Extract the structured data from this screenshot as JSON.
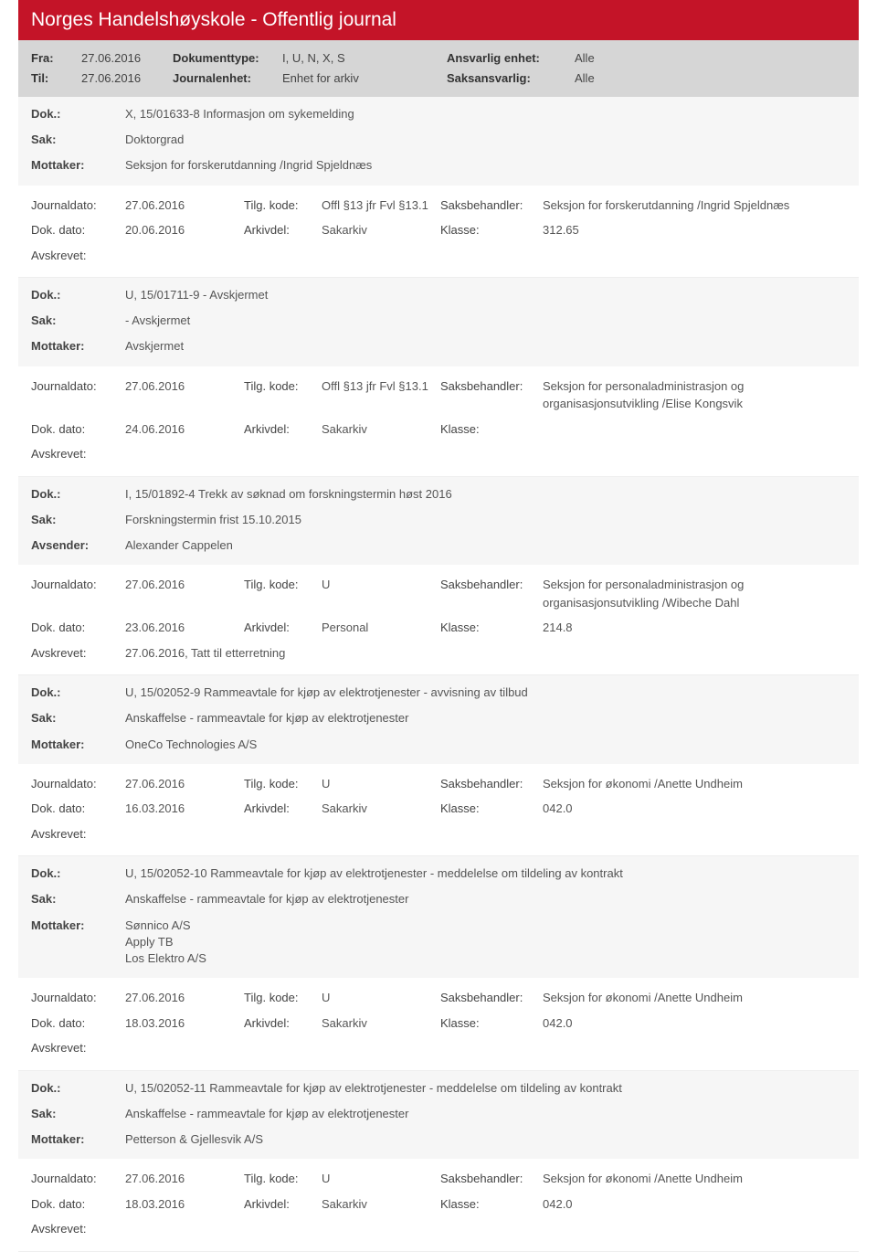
{
  "header": {
    "title": "Norges Handelshøyskole - Offentlig journal"
  },
  "filter": {
    "fra_label": "Fra:",
    "fra": "27.06.2016",
    "til_label": "Til:",
    "til": "27.06.2016",
    "doktype_label": "Dokumenttype:",
    "doktype": "I, U, N, X, S",
    "journalenhet_label": "Journalenhet:",
    "journalenhet": "Enhet for arkiv",
    "ansvenhet_label": "Ansvarlig enhet:",
    "ansvenhet": "Alle",
    "saksansv_label": "Saksansvarlig:",
    "saksansv": "Alle"
  },
  "labels": {
    "dok": "Dok.:",
    "sak": "Sak:",
    "mottaker": "Mottaker:",
    "avsender": "Avsender:",
    "journaldato": "Journaldato:",
    "tilgkode": "Tilg. kode:",
    "saksbehandler": "Saksbehandler:",
    "dokdato": "Dok. dato:",
    "arkivdel": "Arkivdel:",
    "klasse": "Klasse:",
    "avskrevet": "Avskrevet:"
  },
  "entries": [
    {
      "dok": "X, 15/01633-8 Informasjon om sykemelding",
      "sak": "Doktorgrad",
      "party_label": "Mottaker:",
      "party": "Seksjon for forskerutdanning /Ingrid Spjeldnæs",
      "journaldato": "27.06.2016",
      "tilgkode": "Offl §13 jfr Fvl §13.1",
      "saksbehandler": "Seksjon for forskerutdanning /Ingrid Spjeldnæs",
      "dokdato": "20.06.2016",
      "arkivdel": "Sakarkiv",
      "klasse": "312.65",
      "avskrevet": ""
    },
    {
      "dok": "U, 15/01711-9 - Avskjermet",
      "sak": "- Avskjermet",
      "party_label": "Mottaker:",
      "party": "Avskjermet",
      "journaldato": "27.06.2016",
      "tilgkode": "Offl §13 jfr Fvl §13.1",
      "saksbehandler": "Seksjon for personaladministrasjon og organisasjonsutvikling /Elise Kongsvik",
      "dokdato": "24.06.2016",
      "arkivdel": "Sakarkiv",
      "klasse": "",
      "avskrevet": ""
    },
    {
      "dok": "I, 15/01892-4 Trekk av søknad om forskningstermin høst 2016",
      "sak": "Forskningstermin frist 15.10.2015",
      "party_label": "Avsender:",
      "party": "Alexander Cappelen",
      "journaldato": "27.06.2016",
      "tilgkode": "U",
      "saksbehandler": "Seksjon for personaladministrasjon og organisasjonsutvikling /Wibeche Dahl",
      "dokdato": "23.06.2016",
      "arkivdel": "Personal",
      "klasse": "214.8",
      "avskrevet": "27.06.2016, Tatt til etterretning"
    },
    {
      "dok": "U, 15/02052-9 Rammeavtale for kjøp av elektrotjenester - avvisning av tilbud",
      "sak": "Anskaffelse - rammeavtale for kjøp av elektrotjenester",
      "party_label": "Mottaker:",
      "party": "OneCo Technologies A/S",
      "journaldato": "27.06.2016",
      "tilgkode": "U",
      "saksbehandler": "Seksjon for økonomi /Anette Undheim",
      "dokdato": "16.03.2016",
      "arkivdel": "Sakarkiv",
      "klasse": "042.0",
      "avskrevet": ""
    },
    {
      "dok": "U, 15/02052-10 Rammeavtale for kjøp av elektrotjenester - meddelelse om tildeling av kontrakt",
      "sak": "Anskaffelse - rammeavtale for kjøp av elektrotjenester",
      "party_label": "Mottaker:",
      "party": "Sønnico A/S\nApply TB\nLos Elektro A/S",
      "journaldato": "27.06.2016",
      "tilgkode": "U",
      "saksbehandler": "Seksjon for økonomi /Anette Undheim",
      "dokdato": "18.03.2016",
      "arkivdel": "Sakarkiv",
      "klasse": "042.0",
      "avskrevet": ""
    },
    {
      "dok": "U, 15/02052-11 Rammeavtale for kjøp av elektrotjenester - meddelelse om tildeling av kontrakt",
      "sak": "Anskaffelse - rammeavtale for kjøp av elektrotjenester",
      "party_label": "Mottaker:",
      "party": "Petterson & Gjellesvik A/S",
      "journaldato": "27.06.2016",
      "tilgkode": "U",
      "saksbehandler": "Seksjon for økonomi /Anette Undheim",
      "dokdato": "18.03.2016",
      "arkivdel": "Sakarkiv",
      "klasse": "042.0",
      "avskrevet": ""
    }
  ]
}
